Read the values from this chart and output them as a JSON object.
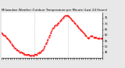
{
  "title": "Milwaukee Weather Outdoor Temperature per Minute (Last 24 Hours)",
  "line_color": "#ff0000",
  "background_color": "#e8e8e8",
  "plot_bg": "#ffffff",
  "x_values": [
    0,
    1,
    2,
    3,
    4,
    5,
    6,
    7,
    8,
    9,
    10,
    11,
    12,
    13,
    14,
    15,
    16,
    17,
    18,
    19,
    20,
    21,
    22,
    23,
    24,
    25,
    26,
    27,
    28,
    29,
    30,
    31,
    32,
    33,
    34,
    35,
    36,
    37,
    38,
    39,
    40,
    41,
    42,
    43,
    44,
    45,
    46,
    47,
    48,
    49,
    50,
    51,
    52,
    53,
    54,
    55,
    56,
    57,
    58,
    59,
    60,
    61,
    62,
    63,
    64,
    65,
    66,
    67,
    68,
    69,
    70,
    71,
    72,
    73,
    74,
    75,
    76,
    77,
    78,
    79,
    80,
    81,
    82,
    83,
    84,
    85,
    86,
    87,
    88,
    89,
    90,
    91,
    92,
    93,
    94,
    95,
    96,
    97,
    98,
    99,
    100
  ],
  "y_values": [
    62,
    61,
    60,
    60,
    59,
    58,
    57,
    56,
    55,
    54,
    52,
    51,
    50,
    49,
    48,
    47,
    47,
    46,
    45,
    45,
    45,
    44,
    44,
    43,
    43,
    43,
    43,
    43,
    42,
    42,
    42,
    42,
    42,
    43,
    43,
    43,
    44,
    44,
    45,
    45,
    46,
    47,
    48,
    50,
    52,
    54,
    56,
    58,
    60,
    62,
    64,
    66,
    67,
    68,
    69,
    69,
    70,
    71,
    72,
    73,
    74,
    75,
    76,
    77,
    77,
    77,
    77,
    76,
    75,
    74,
    73,
    72,
    71,
    70,
    69,
    68,
    67,
    66,
    65,
    64,
    63,
    62,
    61,
    60,
    59,
    58,
    57,
    58,
    59,
    59,
    59,
    58,
    58,
    58,
    58,
    57,
    57,
    57,
    57,
    57,
    57
  ],
  "ylim": [
    40,
    80
  ],
  "xlim": [
    0,
    100
  ],
  "yticks": [
    45,
    50,
    55,
    60,
    65,
    70,
    75
  ],
  "ytick_labels": [
    "45",
    "50",
    "55",
    "60",
    "65",
    "70",
    "75"
  ],
  "vlines": [
    33,
    66
  ],
  "vline_color": "#aaaaaa",
  "title_fontsize": 2.8,
  "tick_fontsize": 2.5,
  "linewidth": 0.7,
  "markersize": 0.8,
  "num_xticks": 48
}
